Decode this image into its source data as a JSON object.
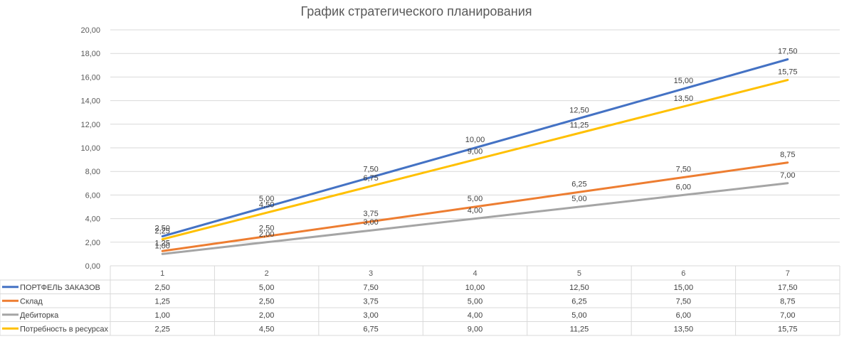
{
  "chart_data": {
    "type": "line",
    "title": "График стратегического планирования",
    "categories": [
      "1",
      "2",
      "3",
      "4",
      "5",
      "6",
      "7"
    ],
    "ylim": [
      0,
      20
    ],
    "yticks": [
      "0,00",
      "2,00",
      "4,00",
      "6,00",
      "8,00",
      "10,00",
      "12,00",
      "14,00",
      "16,00",
      "18,00",
      "20,00"
    ],
    "grid": true,
    "legend": "data-table",
    "series": [
      {
        "name": "ПОРТФЕЛЬ ЗАКАЗОВ",
        "color": "#4472C4",
        "values": [
          2.5,
          5,
          7.5,
          10,
          12.5,
          15,
          17.5
        ],
        "labels": [
          "2,50",
          "5,00",
          "7,50",
          "10,00",
          "12,50",
          "15,00",
          "17,50"
        ]
      },
      {
        "name": "Склад",
        "color": "#ED7D31",
        "values": [
          1.25,
          2.5,
          3.75,
          5,
          6.25,
          7.5,
          8.75
        ],
        "labels": [
          "1,25",
          "2,50",
          "3,75",
          "5,00",
          "6,25",
          "7,50",
          "8,75"
        ]
      },
      {
        "name": "Дебиторка",
        "color": "#A5A5A5",
        "values": [
          1,
          2,
          3,
          4,
          5,
          6,
          7
        ],
        "labels": [
          "1,00",
          "2,00",
          "3,00",
          "4,00",
          "5,00",
          "6,00",
          "7,00"
        ]
      },
      {
        "name": "Потребность в ресурсах",
        "color": "#FFC000",
        "values": [
          2.25,
          4.5,
          6.75,
          9,
          11.25,
          13.5,
          15.75
        ],
        "labels": [
          "2,25",
          "4,50",
          "6,75",
          "9,00",
          "11,25",
          "13,50",
          "15,75"
        ]
      }
    ]
  }
}
